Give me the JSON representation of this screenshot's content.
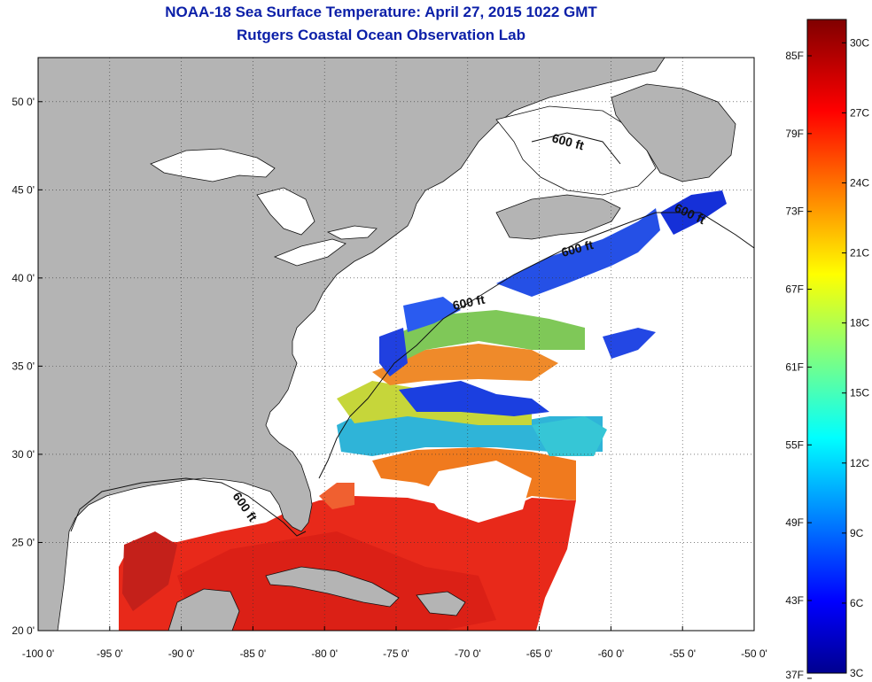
{
  "title": {
    "line1": "NOAA-18 Sea Surface Temperature:  April 27, 2015 1022 GMT",
    "line2": "Rutgers Coastal Ocean Observation Lab"
  },
  "map": {
    "lon_range": [
      -100,
      -50
    ],
    "lat_range": [
      20,
      52.5
    ],
    "x_ticks": [
      "-100 0'",
      "-95 0'",
      "-90 0'",
      "-85 0'",
      "-80 0'",
      "-75 0'",
      "-70 0'",
      "-65 0'",
      "-60 0'",
      "-55 0'",
      "-50 0'"
    ],
    "x_tick_values": [
      -100,
      -95,
      -90,
      -85,
      -80,
      -75,
      -70,
      -65,
      -60,
      -55,
      -50
    ],
    "y_ticks": [
      "20 0'",
      "25 0'",
      "30 0'",
      "35 0'",
      "40 0'",
      "45 0'",
      "50 0'"
    ],
    "y_tick_values": [
      20,
      25,
      30,
      35,
      40,
      45,
      50
    ],
    "grid": "dotted",
    "contour_label": "600 ft",
    "colors": {
      "land": "#b4b4b4",
      "no_data": "#ffffff",
      "title": "#0b1fa8"
    }
  },
  "colorbar": {
    "colormap": "jet",
    "celsius_range": [
      3,
      31
    ],
    "celsius_labels": [
      "30C",
      "27C",
      "24C",
      "21C",
      "18C",
      "15C",
      "12C",
      "9C",
      "6C",
      "3C"
    ],
    "celsius_values": [
      30,
      27,
      24,
      21,
      18,
      15,
      12,
      9,
      6,
      3
    ],
    "fahrenheit_labels": [
      "85F",
      "79F",
      "73F",
      "67F",
      "61F",
      "55F",
      "49F",
      "43F",
      "37F"
    ],
    "fahrenheit_values": [
      85,
      79,
      73,
      67,
      61,
      55,
      49,
      43,
      37
    ]
  }
}
